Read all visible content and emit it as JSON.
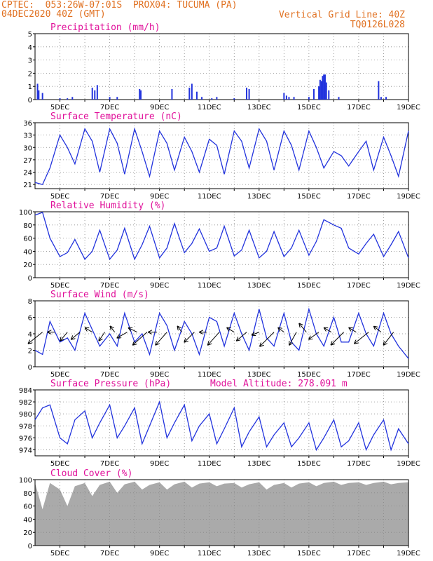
{
  "header": {
    "line1_left": "CPTEC:  053:26W-07:01S  PROX04: TUCUMA (PA)",
    "line2_left": "04DEC2020 40Z (GMT)",
    "line2_right": "Vertical Grid Line: 40Z",
    "line3_right": "TQ0126L028"
  },
  "colors": {
    "header": "#e07020",
    "title": "#e0109a",
    "line": "#2233dd",
    "cloud": "#aaaaaa",
    "arrow": "#000000"
  },
  "x_axis": {
    "start_day": 4,
    "end_day": 19,
    "labels": [
      "5DEC",
      "7DEC",
      "9DEC",
      "11DEC",
      "13DEC",
      "15DEC",
      "17DEC",
      "19DEC"
    ]
  },
  "chart_data": [
    {
      "type": "bar",
      "title": "Precipitation (mm/h)",
      "ylim": [
        0,
        5
      ],
      "yticks": [
        0,
        1,
        2,
        3,
        4,
        5
      ],
      "x": [
        4.1,
        4.15,
        4.3,
        5.0,
        5.3,
        5.5,
        6.3,
        6.4,
        6.5,
        7.0,
        7.3,
        8.2,
        8.25,
        9.5,
        10.2,
        10.3,
        10.5,
        10.7,
        11.1,
        11.3,
        12.0,
        12.5,
        12.6,
        14.0,
        14.1,
        14.2,
        14.4,
        15.0,
        15.2,
        15.4,
        15.45,
        15.5,
        15.55,
        15.6,
        15.65,
        15.7,
        15.8,
        16.2,
        17.8,
        17.9,
        18.1
      ],
      "values": [
        1.2,
        0.7,
        0.5,
        0.1,
        0.1,
        0.2,
        0.9,
        0.7,
        1.1,
        0.2,
        0.2,
        0.8,
        0.7,
        0.8,
        0.9,
        1.2,
        0.6,
        0.2,
        0.1,
        0.2,
        0.1,
        0.9,
        0.8,
        0.5,
        0.3,
        0.2,
        0.2,
        0.2,
        0.8,
        1.0,
        1.5,
        1.4,
        1.8,
        1.9,
        1.9,
        1.3,
        0.7,
        0.2,
        1.4,
        0.2,
        0.2
      ]
    },
    {
      "type": "line",
      "title": "Surface Temperature (nC)",
      "ylim": [
        20,
        36
      ],
      "yticks": [
        21,
        24,
        27,
        30,
        33,
        36
      ],
      "x": [
        4.0,
        4.3,
        4.6,
        5.0,
        5.3,
        5.6,
        6.0,
        6.3,
        6.6,
        7.0,
        7.3,
        7.6,
        8.0,
        8.3,
        8.6,
        9.0,
        9.3,
        9.6,
        10.0,
        10.3,
        10.6,
        11.0,
        11.3,
        11.6,
        12.0,
        12.3,
        12.6,
        13.0,
        13.3,
        13.6,
        14.0,
        14.3,
        14.6,
        15.0,
        15.3,
        15.6,
        16.0,
        16.3,
        16.6,
        17.0,
        17.3,
        17.6,
        18.0,
        18.3,
        18.6,
        19.0
      ],
      "y": [
        21.5,
        21.0,
        25.0,
        33.0,
        30.0,
        26.0,
        34.5,
        31.5,
        24.0,
        34.5,
        31.0,
        23.5,
        34.5,
        29.0,
        23.0,
        34.0,
        31.0,
        24.5,
        32.5,
        29.0,
        24.0,
        32.0,
        30.5,
        23.5,
        34.0,
        31.5,
        25.0,
        34.5,
        31.5,
        24.5,
        34.0,
        30.5,
        24.5,
        34.0,
        30.0,
        25.0,
        29.0,
        28.0,
        25.5,
        29.0,
        31.5,
        24.5,
        32.5,
        28.0,
        23.0,
        34.0
      ]
    },
    {
      "type": "line",
      "title": "Relative Humidity (%)",
      "ylim": [
        0,
        100
      ],
      "yticks": [
        0,
        20,
        40,
        60,
        80,
        100
      ],
      "x": [
        4.0,
        4.3,
        4.6,
        5.0,
        5.3,
        5.6,
        6.0,
        6.3,
        6.6,
        7.0,
        7.3,
        7.6,
        8.0,
        8.3,
        8.6,
        9.0,
        9.3,
        9.6,
        10.0,
        10.3,
        10.6,
        11.0,
        11.3,
        11.6,
        12.0,
        12.3,
        12.6,
        13.0,
        13.3,
        13.6,
        14.0,
        14.3,
        14.6,
        15.0,
        15.3,
        15.6,
        16.0,
        16.3,
        16.6,
        17.0,
        17.3,
        17.6,
        18.0,
        18.3,
        18.6,
        19.0
      ],
      "y": [
        95,
        99,
        60,
        32,
        38,
        58,
        28,
        40,
        72,
        28,
        42,
        75,
        28,
        50,
        78,
        30,
        45,
        82,
        38,
        52,
        74,
        40,
        45,
        78,
        33,
        42,
        72,
        30,
        40,
        70,
        32,
        45,
        72,
        34,
        55,
        88,
        80,
        75,
        45,
        36,
        52,
        66,
        32,
        50,
        70,
        30
      ]
    },
    {
      "type": "line",
      "title": "Surface Wind (m/s)",
      "ylim": [
        0,
        8
      ],
      "yticks": [
        0,
        2,
        4,
        6,
        8
      ],
      "x": [
        4.0,
        4.3,
        4.6,
        5.0,
        5.3,
        5.6,
        6.0,
        6.3,
        6.6,
        7.0,
        7.3,
        7.6,
        8.0,
        8.3,
        8.6,
        9.0,
        9.3,
        9.6,
        10.0,
        10.3,
        10.6,
        11.0,
        11.3,
        11.6,
        12.0,
        12.3,
        12.6,
        13.0,
        13.3,
        13.6,
        14.0,
        14.3,
        14.6,
        15.0,
        15.3,
        15.6,
        16.0,
        16.3,
        16.6,
        17.0,
        17.3,
        17.6,
        18.0,
        18.3,
        18.6,
        19.0
      ],
      "y": [
        2.0,
        1.5,
        5.5,
        3.0,
        3.5,
        2.0,
        6.5,
        4.5,
        2.5,
        4.0,
        2.5,
        6.5,
        3.0,
        4.0,
        1.5,
        6.5,
        5.0,
        2.0,
        5.5,
        4.0,
        1.5,
        6.0,
        5.5,
        2.5,
        6.5,
        4.0,
        2.0,
        7.0,
        3.5,
        2.5,
        6.5,
        3.0,
        2.0,
        7.0,
        4.0,
        2.5,
        6.0,
        3.0,
        3.0,
        6.5,
        4.0,
        2.5,
        6.5,
        4.0,
        2.5,
        1.0
      ],
      "wind_arrows": [
        {
          "x": 4.3,
          "u": -1.0,
          "v": -0.8
        },
        {
          "x": 4.8,
          "u": -0.5,
          "v": 0.0
        },
        {
          "x": 5.3,
          "u": -0.5,
          "v": -0.6
        },
        {
          "x": 5.8,
          "u": -0.6,
          "v": -0.5
        },
        {
          "x": 6.3,
          "u": -0.5,
          "v": 0.3
        },
        {
          "x": 6.8,
          "u": -0.4,
          "v": -0.6
        },
        {
          "x": 7.2,
          "u": -0.3,
          "v": 0.4
        },
        {
          "x": 7.7,
          "u": -0.7,
          "v": -0.4
        },
        {
          "x": 8.1,
          "u": -0.6,
          "v": 0.3
        },
        {
          "x": 8.5,
          "u": -1.0,
          "v": -0.9
        },
        {
          "x": 8.9,
          "u": -0.6,
          "v": 0.0
        },
        {
          "x": 9.3,
          "u": -0.8,
          "v": -0.9
        },
        {
          "x": 9.9,
          "u": -0.3,
          "v": 0.4
        },
        {
          "x": 10.4,
          "u": -0.7,
          "v": -0.7
        },
        {
          "x": 10.9,
          "u": -0.5,
          "v": 0.0
        },
        {
          "x": 11.4,
          "u": -0.8,
          "v": -0.9
        },
        {
          "x": 12.0,
          "u": -0.5,
          "v": 0.3
        },
        {
          "x": 12.5,
          "u": -0.7,
          "v": -0.6
        },
        {
          "x": 13.0,
          "u": -0.5,
          "v": -0.2
        },
        {
          "x": 13.6,
          "u": -1.0,
          "v": -1.0
        },
        {
          "x": 14.0,
          "u": -0.4,
          "v": 0.3
        },
        {
          "x": 14.5,
          "u": -0.5,
          "v": -0.9
        },
        {
          "x": 14.9,
          "u": -0.5,
          "v": 0.6
        },
        {
          "x": 15.4,
          "u": -0.7,
          "v": -0.5
        },
        {
          "x": 15.9,
          "u": -0.5,
          "v": 0.3
        },
        {
          "x": 16.4,
          "u": -0.9,
          "v": -0.9
        },
        {
          "x": 16.9,
          "u": -0.5,
          "v": 0.3
        },
        {
          "x": 17.4,
          "u": -1.0,
          "v": -0.8
        },
        {
          "x": 17.9,
          "u": -0.5,
          "v": 0.4
        },
        {
          "x": 18.4,
          "u": -0.7,
          "v": -0.9
        }
      ]
    },
    {
      "type": "line",
      "title": "Surface Pressure (hPa)",
      "annotation": "Model Altitude: 278.091  m",
      "ylim": [
        973,
        984
      ],
      "yticks": [
        974,
        976,
        978,
        980,
        982,
        984
      ],
      "x": [
        4.0,
        4.3,
        4.6,
        5.0,
        5.3,
        5.6,
        6.0,
        6.3,
        6.6,
        7.0,
        7.3,
        7.6,
        8.0,
        8.3,
        8.6,
        9.0,
        9.3,
        9.6,
        10.0,
        10.3,
        10.6,
        11.0,
        11.3,
        11.6,
        12.0,
        12.3,
        12.6,
        13.0,
        13.3,
        13.6,
        14.0,
        14.3,
        14.6,
        15.0,
        15.3,
        15.6,
        16.0,
        16.3,
        16.6,
        17.0,
        17.3,
        17.6,
        18.0,
        18.3,
        18.6,
        19.0
      ],
      "y": [
        979.0,
        981.0,
        981.5,
        976.0,
        975.0,
        979.0,
        980.5,
        976.0,
        978.5,
        981.5,
        976.0,
        978.0,
        981.0,
        975.0,
        978.0,
        982.0,
        976.0,
        978.5,
        981.5,
        975.5,
        978.0,
        980.0,
        975.0,
        977.5,
        981.0,
        974.5,
        977.0,
        979.5,
        974.5,
        976.5,
        978.5,
        974.5,
        976.0,
        978.5,
        974.0,
        976.0,
        979.0,
        974.5,
        975.5,
        978.5,
        974.0,
        976.5,
        979.0,
        974.0,
        977.5,
        975.0
      ]
    },
    {
      "type": "area",
      "title": "Cloud Cover (%)",
      "ylim": [
        0,
        100
      ],
      "yticks": [
        0,
        20,
        40,
        60,
        80,
        100
      ],
      "x": [
        4.0,
        4.3,
        4.6,
        5.0,
        5.3,
        5.6,
        6.0,
        6.3,
        6.6,
        7.0,
        7.3,
        7.6,
        8.0,
        8.3,
        8.6,
        9.0,
        9.3,
        9.6,
        10.0,
        10.3,
        10.6,
        11.0,
        11.3,
        11.6,
        12.0,
        12.3,
        12.6,
        13.0,
        13.3,
        13.6,
        14.0,
        14.3,
        14.6,
        15.0,
        15.3,
        15.6,
        16.0,
        16.3,
        16.6,
        17.0,
        17.3,
        17.6,
        18.0,
        18.3,
        18.6,
        19.0
      ],
      "y": [
        95,
        55,
        95,
        85,
        60,
        90,
        95,
        75,
        92,
        97,
        80,
        93,
        97,
        85,
        92,
        96,
        85,
        93,
        97,
        88,
        94,
        96,
        90,
        94,
        95,
        88,
        93,
        96,
        85,
        92,
        95,
        88,
        94,
        96,
        90,
        95,
        97,
        92,
        95,
        96,
        92,
        95,
        97,
        93,
        95,
        96
      ]
    }
  ]
}
